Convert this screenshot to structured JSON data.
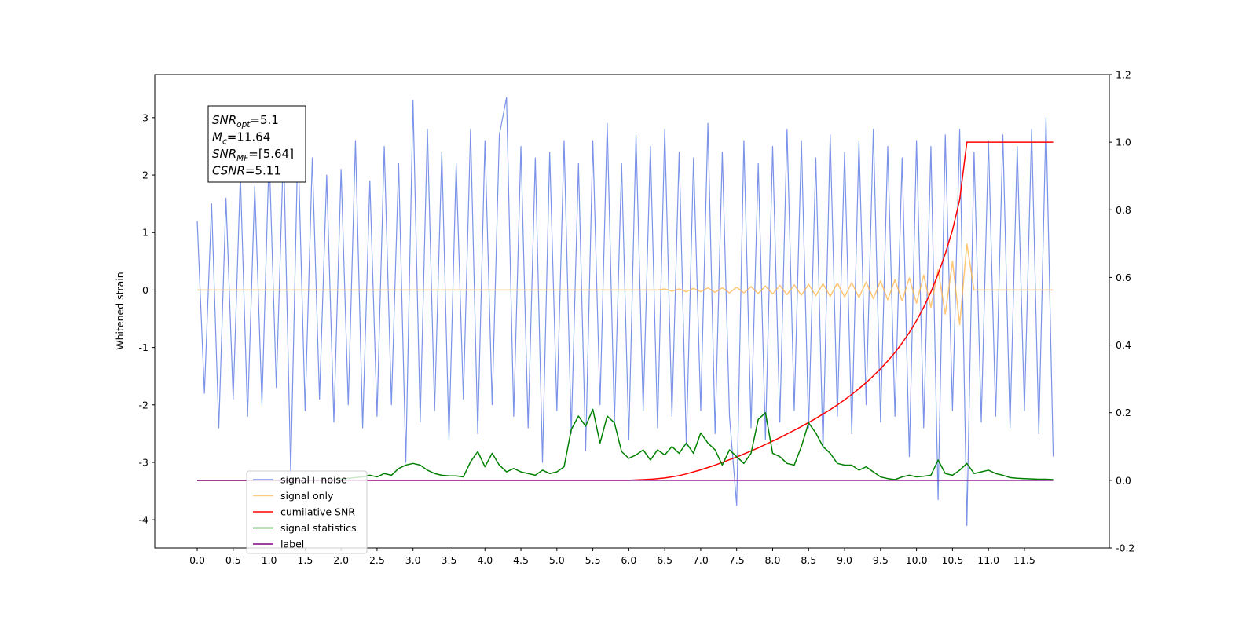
{
  "chart_data": {
    "type": "line",
    "ylabel": "Whitened strain",
    "annotation": [
      {
        "base": "SNR",
        "sub": "opt",
        "text": "=5.1"
      },
      {
        "base": "M",
        "sub": "c",
        "text": "=11.64"
      },
      {
        "base": "SNR",
        "sub": "MF",
        "text": "=[5.64]"
      },
      {
        "base": "CSNR",
        "text": "=5.11"
      }
    ],
    "x": [
      0,
      0.1,
      0.2,
      0.3,
      0.4,
      0.5,
      0.6,
      0.7,
      0.8,
      0.9,
      1,
      1.1,
      1.2,
      1.3,
      1.4,
      1.5,
      1.6,
      1.7,
      1.8,
      1.9,
      2,
      2.1,
      2.2,
      2.3,
      2.4,
      2.5,
      2.6,
      2.7,
      2.8,
      2.9,
      3,
      3.1,
      3.2,
      3.3,
      3.4,
      3.5,
      3.6,
      3.7,
      3.8,
      3.9,
      4,
      4.1,
      4.2,
      4.3,
      4.4,
      4.5,
      4.6,
      4.7,
      4.8,
      4.9,
      5,
      5.1,
      5.2,
      5.3,
      5.4,
      5.5,
      5.6,
      5.7,
      5.8,
      5.9,
      6,
      6.1,
      6.2,
      6.3,
      6.4,
      6.5,
      6.6,
      6.7,
      6.8,
      6.9,
      7,
      7.1,
      7.2,
      7.3,
      7.4,
      7.5,
      7.6,
      7.7,
      7.8,
      7.9,
      8,
      8.1,
      8.2,
      8.3,
      8.4,
      8.5,
      8.6,
      8.7,
      8.8,
      8.9,
      9,
      9.1,
      9.2,
      9.3,
      9.4,
      9.5,
      9.6,
      9.7,
      9.8,
      9.9,
      10,
      10.1,
      10.2,
      10.3,
      10.4,
      10.5,
      10.6,
      10.7,
      10.8,
      10.9,
      11,
      11.1,
      11.2,
      11.3,
      11.4,
      11.5,
      11.6,
      11.7,
      11.8,
      11.9
    ],
    "series": [
      {
        "name": "signal+ noise",
        "color": "#7b93e8",
        "axis": "y",
        "values": [
          1.2,
          -1.8,
          1.5,
          -2.4,
          1.6,
          -1.9,
          2.0,
          -2.2,
          1.8,
          -2.0,
          2.4,
          -1.7,
          2.5,
          -3.2,
          2.6,
          -2.1,
          2.3,
          -1.9,
          2.0,
          -2.3,
          2.1,
          -2.0,
          2.6,
          -2.4,
          1.9,
          -2.2,
          2.5,
          -2.0,
          2.2,
          -3.0,
          3.3,
          -2.3,
          2.8,
          -2.1,
          2.4,
          -2.6,
          2.2,
          -1.9,
          2.8,
          -2.5,
          2.6,
          -2.0,
          2.7,
          3.35,
          -2.2,
          2.5,
          -2.4,
          2.3,
          -3.0,
          2.4,
          -2.1,
          2.6,
          -2.5,
          2.2,
          -2.8,
          2.6,
          -2.0,
          2.9,
          -2.3,
          2.2,
          -2.6,
          2.7,
          -2.1,
          2.5,
          -2.4,
          2.8,
          -2.2,
          2.4,
          -2.7,
          2.3,
          -2.1,
          2.9,
          -2.5,
          2.4,
          -2.2,
          -3.75,
          2.6,
          -2.4,
          2.2,
          -2.6,
          2.5,
          -2.3,
          2.8,
          -2.1,
          2.6,
          -2.4,
          2.3,
          -2.8,
          2.7,
          -2.2,
          2.4,
          -2.5,
          2.6,
          -2.0,
          2.8,
          -2.3,
          2.5,
          -2.2,
          2.3,
          -2.9,
          2.6,
          -2.4,
          2.5,
          -3.65,
          2.7,
          -2.1,
          2.8,
          -4.1,
          2.4,
          -2.3,
          2.6,
          -2.2,
          2.7,
          -2.4,
          2.5,
          -2.1,
          2.8,
          -2.5,
          3.0,
          -2.9
        ]
      },
      {
        "name": "signal only",
        "color": "#ffb347",
        "axis": "y",
        "values": [
          0,
          0,
          0,
          0,
          0,
          0,
          0,
          0,
          0,
          0,
          0,
          0,
          0,
          0,
          0,
          0,
          0,
          0,
          0,
          0,
          0,
          0,
          0,
          0,
          0,
          0,
          0,
          0,
          0,
          0,
          0,
          0,
          0,
          0,
          0,
          0,
          0,
          0,
          0,
          0,
          0,
          0,
          0,
          0,
          0,
          0,
          0,
          0,
          0,
          0,
          0,
          0,
          0,
          0,
          0,
          0,
          0,
          0,
          0,
          0,
          0,
          0,
          0,
          0,
          0,
          0.02,
          -0.02,
          0.02,
          -0.03,
          0.03,
          -0.03,
          0.04,
          -0.04,
          0.04,
          -0.05,
          0.05,
          -0.05,
          0.06,
          -0.06,
          0.07,
          -0.07,
          0.08,
          -0.08,
          0.09,
          -0.09,
          0.1,
          -0.1,
          0.11,
          -0.11,
          0.12,
          -0.12,
          0.13,
          -0.13,
          0.14,
          -0.15,
          0.16,
          -0.17,
          0.18,
          -0.19,
          0.21,
          -0.23,
          0.26,
          -0.3,
          0.35,
          -0.42,
          0.5,
          -0.6,
          0.8,
          0,
          0,
          0,
          0,
          0,
          0,
          0,
          0,
          0,
          0,
          0,
          0
        ]
      },
      {
        "name": "cumilative SNR",
        "color": "#ff0000",
        "axis": "y2",
        "values": [
          0,
          0,
          0,
          0,
          0,
          0,
          0,
          0,
          0,
          0,
          0,
          0,
          0,
          0,
          0,
          0,
          0,
          0,
          0,
          0,
          0,
          0,
          0,
          0,
          0,
          0,
          0,
          0,
          0,
          0,
          0,
          0,
          0,
          0,
          0,
          0,
          0,
          0,
          0,
          0,
          0,
          0,
          0,
          0,
          0,
          0,
          0,
          0,
          0,
          0,
          0,
          0,
          0,
          0,
          0,
          0,
          0,
          0,
          0,
          0,
          0,
          0.001,
          0.002,
          0.003,
          0.005,
          0.007,
          0.01,
          0.014,
          0.019,
          0.025,
          0.031,
          0.038,
          0.045,
          0.053,
          0.061,
          0.069,
          0.078,
          0.087,
          0.096,
          0.106,
          0.116,
          0.126,
          0.137,
          0.148,
          0.159,
          0.171,
          0.183,
          0.196,
          0.209,
          0.223,
          0.238,
          0.254,
          0.271,
          0.289,
          0.309,
          0.33,
          0.353,
          0.378,
          0.406,
          0.437,
          0.472,
          0.512,
          0.557,
          0.61,
          0.67,
          0.74,
          0.83,
          1.0,
          1,
          1,
          1,
          1,
          1,
          1,
          1,
          1,
          1,
          1,
          1,
          1
        ]
      },
      {
        "name": "signal statistics",
        "color": "#008000",
        "axis": "y2",
        "values": [
          0,
          0,
          0,
          0,
          0,
          0,
          0,
          0,
          0,
          0,
          0,
          0,
          0,
          0,
          0,
          0,
          0,
          0,
          0,
          0.002,
          0.004,
          0.006,
          0.008,
          0.01,
          0.015,
          0.01,
          0.02,
          0.015,
          0.035,
          0.045,
          0.05,
          0.045,
          0.03,
          0.02,
          0.015,
          0.013,
          0.013,
          0.01,
          0.055,
          0.085,
          0.04,
          0.08,
          0.045,
          0.025,
          0.035,
          0.025,
          0.02,
          0.015,
          0.03,
          0.02,
          0.025,
          0.04,
          0.15,
          0.19,
          0.16,
          0.21,
          0.11,
          0.19,
          0.17,
          0.085,
          0.065,
          0.075,
          0.09,
          0.06,
          0.09,
          0.075,
          0.1,
          0.08,
          0.11,
          0.08,
          0.14,
          0.11,
          0.09,
          0.045,
          0.09,
          0.07,
          0.05,
          0.08,
          0.18,
          0.2,
          0.08,
          0.07,
          0.05,
          0.045,
          0.1,
          0.17,
          0.14,
          0.1,
          0.08,
          0.05,
          0.045,
          0.045,
          0.03,
          0.04,
          0.025,
          0.01,
          0.005,
          0.002,
          0.01,
          0.015,
          0.01,
          0.012,
          0.015,
          0.06,
          0.02,
          0.015,
          0.03,
          0.05,
          0.02,
          0.025,
          0.03,
          0.02,
          0.015,
          0.008,
          0.006,
          0.005,
          0.004,
          0.003,
          0.003,
          0.002
        ]
      },
      {
        "name": "label",
        "color": "#800080",
        "axis": "y2",
        "values": [
          0,
          0,
          0,
          0,
          0,
          0,
          0,
          0,
          0,
          0,
          0,
          0,
          0,
          0,
          0,
          0,
          0,
          0,
          0,
          0,
          0,
          0,
          0,
          0,
          0,
          0,
          0,
          0,
          0,
          0,
          0,
          0,
          0,
          0,
          0,
          0,
          0,
          0,
          0,
          0,
          0,
          0,
          0,
          0,
          0,
          0,
          0,
          0,
          0,
          0,
          0,
          0,
          0,
          0,
          0,
          0,
          0,
          0,
          0,
          0,
          0,
          0,
          0,
          0,
          0,
          0,
          0,
          0,
          0,
          0,
          0,
          0,
          0,
          0,
          0,
          0,
          0,
          0,
          0,
          0,
          0,
          0,
          0,
          0,
          0,
          0,
          0,
          0,
          0,
          0,
          0,
          0,
          0,
          0,
          0,
          0,
          0,
          0,
          0,
          0,
          0,
          0,
          0,
          0,
          0,
          0,
          0,
          0,
          0,
          0,
          0,
          0,
          0,
          0,
          0,
          0,
          0,
          0,
          0,
          0
        ]
      }
    ],
    "xlim": [
      -0.59,
      12.68
    ],
    "xticks": [
      {
        "value": 0,
        "label": "0.0"
      },
      0.5,
      {
        "value": 1,
        "label": "1.0"
      },
      1.5,
      {
        "value": 2,
        "label": "2.0"
      },
      2.5,
      {
        "value": 3,
        "label": "3.0"
      },
      3.5,
      {
        "value": 4,
        "label": "4.0"
      },
      4.5,
      {
        "value": 5,
        "label": "5.0"
      },
      5.5,
      {
        "value": 6,
        "label": "6.0"
      },
      6.5,
      {
        "value": 7,
        "label": "7.0"
      },
      7.5,
      {
        "value": 8,
        "label": "8.0"
      },
      8.5,
      {
        "value": 9,
        "label": "9.0"
      },
      9.5,
      {
        "value": 10,
        "label": "10.0"
      },
      10.5,
      {
        "value": 11,
        "label": "11.0"
      },
      11.5
    ],
    "ylim": [
      -4.49,
      3.75
    ],
    "yticks": [
      -4,
      -3,
      -2,
      -1,
      0,
      1,
      2,
      3
    ],
    "y2lim": [
      -0.2,
      1.2
    ],
    "y2ticks": [
      -0.2,
      {
        "value": 0,
        "label": "0.0"
      },
      0.2,
      0.4,
      0.6,
      0.8,
      {
        "value": 1,
        "label": "1.0"
      },
      1.2
    ],
    "legend": "lower left"
  }
}
